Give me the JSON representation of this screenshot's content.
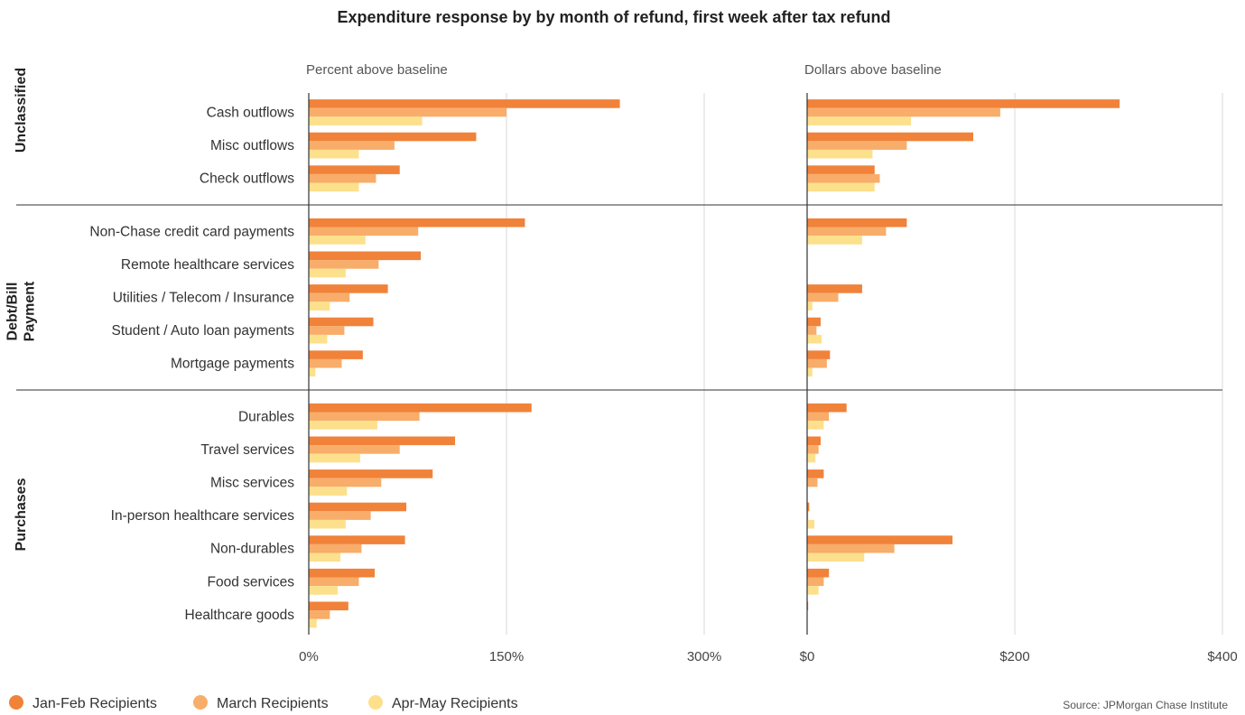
{
  "chart_data": {
    "type": "bar",
    "orientation": "horizontal",
    "title": "Expenditure response by by month of refund, first week after tax refund",
    "source": "Source: JPMorgan Chase Institute",
    "groups": [
      {
        "name": "Unclassified",
        "categories": [
          "Cash outflows",
          "Misc outflows",
          "Check outflows"
        ]
      },
      {
        "name": "Debt/Bill Payment",
        "categories": [
          "Non-Chase credit card payments",
          "Remote healthcare services",
          "Utilities / Telecom / Insurance",
          "Student / Auto loan payments",
          "Mortgage payments"
        ]
      },
      {
        "name": "Purchases",
        "categories": [
          "Durables",
          "Travel services",
          "Misc services",
          "In-person healthcare services",
          "Non-durables",
          "Food services",
          "Healthcare goods"
        ]
      }
    ],
    "categories": [
      "Cash outflows",
      "Misc outflows",
      "Check outflows",
      "Non-Chase credit card payments",
      "Remote healthcare services",
      "Utilities / Telecom / Insurance",
      "Student / Auto loan payments",
      "Mortgage payments",
      "Durables",
      "Travel services",
      "Misc services",
      "In-person healthcare services",
      "Non-durables",
      "Food services",
      "Healthcare goods"
    ],
    "legend_position": "bottom-left",
    "panels": [
      {
        "subtitle": "Percent above baseline",
        "unit": "percent",
        "xlim": [
          0,
          300
        ],
        "ticks": [
          0,
          150,
          300
        ],
        "tick_labels": [
          "0%",
          "150%",
          "300%"
        ],
        "grid": true,
        "series": [
          {
            "name": "Jan-Feb Recipients",
            "color": "#f0823a",
            "values": [
              236,
              127,
              69,
              164,
              85,
              60,
              49,
              41,
              169,
              111,
              94,
              74,
              73,
              50,
              30
            ]
          },
          {
            "name": "March Recipients",
            "color": "#f8ad6a",
            "values": [
              150,
              65,
              51,
              83,
              53,
              31,
              27,
              25,
              84,
              69,
              55,
              47,
              40,
              38,
              16
            ]
          },
          {
            "name": "Apr-May Recipients",
            "color": "#fde08c",
            "values": [
              86,
              38,
              38,
              43,
              28,
              16,
              14,
              5,
              52,
              39,
              29,
              28,
              24,
              22,
              6
            ]
          }
        ]
      },
      {
        "subtitle": "Dollars above baseline",
        "unit": "dollars",
        "xlim": [
          0,
          400
        ],
        "ticks": [
          0,
          200,
          400
        ],
        "tick_labels": [
          "$0",
          "$200",
          "$400"
        ],
        "grid": true,
        "series": [
          {
            "name": "Jan-Feb Recipients",
            "color": "#f0823a",
            "values": [
              301,
              160,
              65,
              96,
              0,
              53,
              13,
              22,
              38,
              13,
              16,
              2,
              140,
              21,
              1
            ]
          },
          {
            "name": "March Recipients",
            "color": "#f8ad6a",
            "values": [
              186,
              96,
              70,
              76,
              0,
              30,
              9,
              19,
              21,
              11,
              10,
              1,
              84,
              16,
              0
            ]
          },
          {
            "name": "Apr-May Recipients",
            "color": "#fde08c",
            "values": [
              100,
              63,
              65,
              53,
              0,
              5,
              14,
              5,
              16,
              8,
              0,
              7,
              55,
              11,
              0
            ]
          }
        ]
      }
    ]
  }
}
